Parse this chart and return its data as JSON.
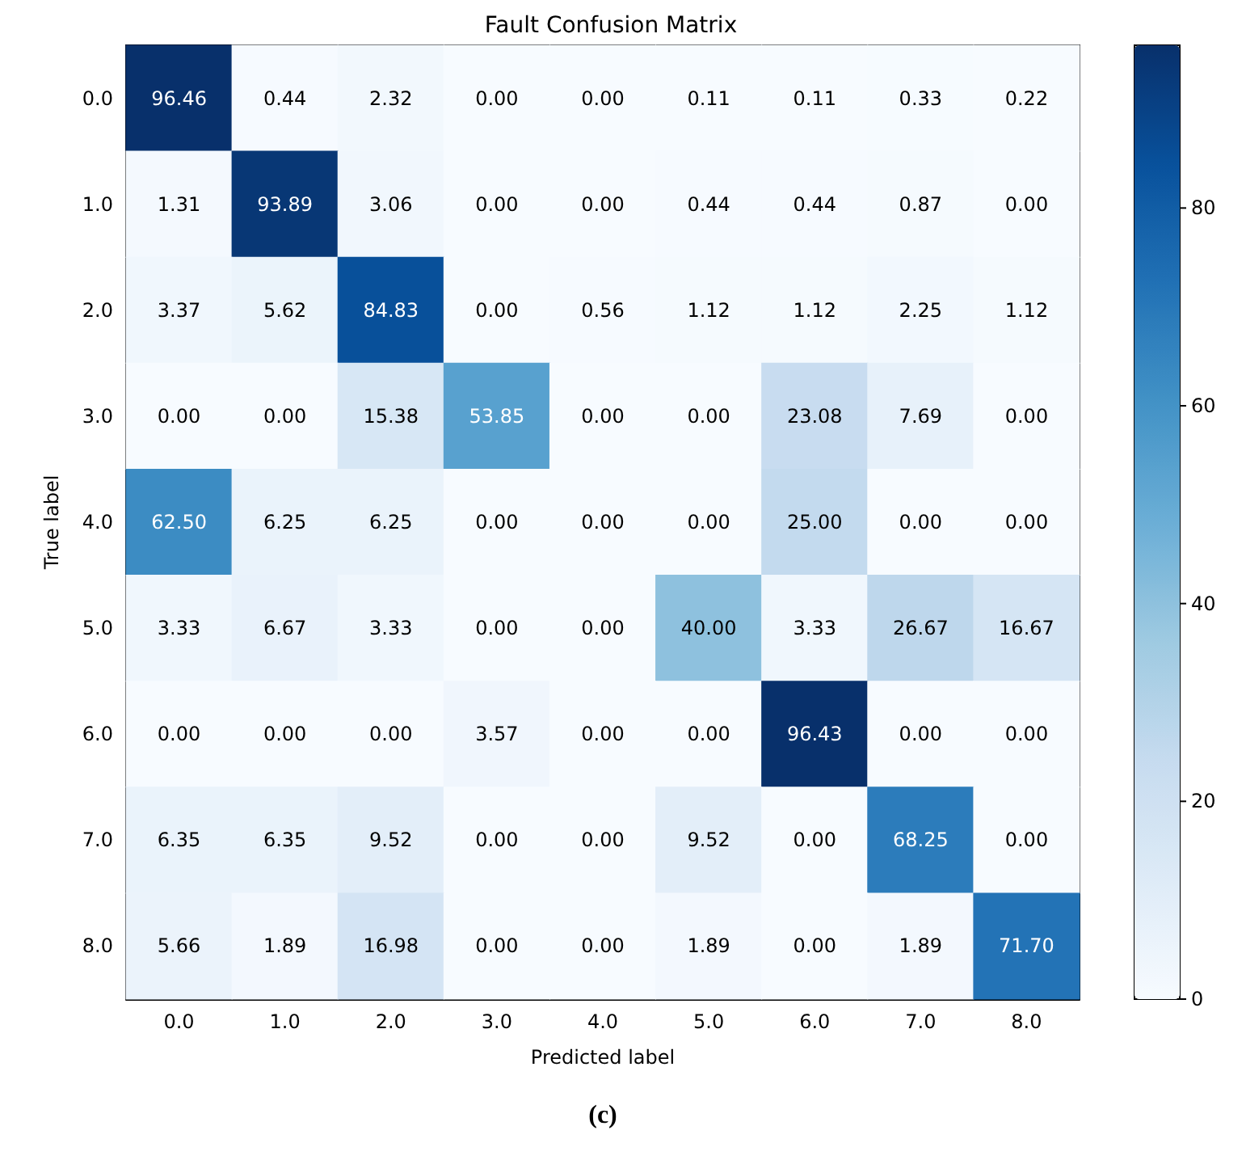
{
  "chart_data": {
    "type": "heatmap",
    "title": "Fault Confusion Matrix",
    "xlabel": "Predicted label",
    "ylabel": "True label",
    "categories": [
      "0.0",
      "1.0",
      "2.0",
      "3.0",
      "4.0",
      "5.0",
      "6.0",
      "7.0",
      "8.0"
    ],
    "y_categories": [
      "0.0",
      "1.0",
      "2.0",
      "3.0",
      "4.0",
      "5.0",
      "6.0",
      "7.0",
      "8.0"
    ],
    "cells": [
      [
        96.46,
        0.44,
        2.32,
        0,
        0,
        0.11,
        0.11,
        0.33,
        0.22
      ],
      [
        1.31,
        93.89,
        3.06,
        0,
        0,
        0.44,
        0.44,
        0.87,
        0
      ],
      [
        3.37,
        5.62,
        84.83,
        0,
        0.56,
        1.12,
        1.12,
        2.25,
        1.12
      ],
      [
        0,
        0,
        15.38,
        53.85,
        0,
        0,
        23.08,
        7.69,
        0
      ],
      [
        62.5,
        6.25,
        6.25,
        0,
        0,
        0,
        25,
        0,
        0
      ],
      [
        3.33,
        6.67,
        3.33,
        0,
        0,
        40,
        3.33,
        26.67,
        16.67
      ],
      [
        0,
        0,
        0,
        3.57,
        0,
        0,
        96.43,
        0,
        0
      ],
      [
        6.35,
        6.35,
        9.52,
        0,
        0,
        9.52,
        0,
        68.25,
        0
      ],
      [
        5.66,
        1.89,
        16.98,
        0,
        0,
        1.89,
        0,
        1.89,
        71.7
      ]
    ],
    "cell_labels": [
      [
        "96.46",
        "0.44",
        "2.32",
        "0.00",
        "0.00",
        "0.11",
        "0.11",
        "0.33",
        "0.22"
      ],
      [
        "1.31",
        "93.89",
        "3.06",
        "0.00",
        "0.00",
        "0.44",
        "0.44",
        "0.87",
        "0.00"
      ],
      [
        "3.37",
        "5.62",
        "84.83",
        "0.00",
        "0.56",
        "1.12",
        "1.12",
        "2.25",
        "1.12"
      ],
      [
        "0.00",
        "0.00",
        "15.38",
        "53.85",
        "0.00",
        "0.00",
        "23.08",
        "7.69",
        "0.00"
      ],
      [
        "62.50",
        "6.25",
        "6.25",
        "0.00",
        "0.00",
        "0.00",
        "25.00",
        "0.00",
        "0.00"
      ],
      [
        "3.33",
        "6.67",
        "3.33",
        "0.00",
        "0.00",
        "40.00",
        "3.33",
        "26.67",
        "16.67"
      ],
      [
        "0.00",
        "0.00",
        "0.00",
        "3.57",
        "0.00",
        "0.00",
        "96.43",
        "0.00",
        "0.00"
      ],
      [
        "6.35",
        "6.35",
        "9.52",
        "0.00",
        "0.00",
        "9.52",
        "0.00",
        "68.25",
        "0.00"
      ],
      [
        "5.66",
        "1.89",
        "16.98",
        "0.00",
        "0.00",
        "1.89",
        "0.00",
        "1.89",
        "71.70"
      ]
    ],
    "clim": [
      0,
      96.46
    ],
    "cticks": [
      0,
      20,
      40,
      60,
      80
    ],
    "annotations": [
      "(c)"
    ]
  }
}
